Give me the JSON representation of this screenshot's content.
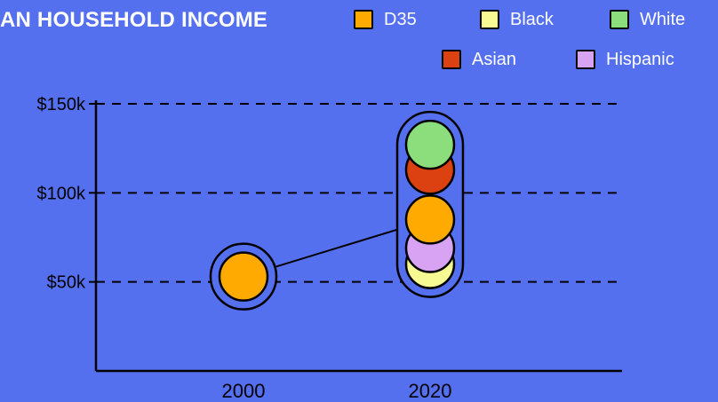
{
  "chart_data": {
    "type": "scatter",
    "title": "AN HOUSEHOLD INCOME",
    "categories": [
      "2000",
      "2020"
    ],
    "y_ticks": [
      "$50k",
      "$100k",
      "$150k"
    ],
    "ylim": [
      0,
      150
    ],
    "grid": "dashed horizontal",
    "legend_position": "top-right",
    "legend": [
      {
        "label": "D35",
        "color": "#ffaa00"
      },
      {
        "label": "Black",
        "color": "#f7f993"
      },
      {
        "label": "White",
        "color": "#8cdd7b"
      },
      {
        "label": "Asian",
        "color": "#dc4112"
      },
      {
        "label": "Hispanic",
        "color": "#d8a3f2"
      }
    ],
    "series": [
      {
        "name": "D35",
        "color": "#ffaa00",
        "points": [
          {
            "x": "2000",
            "y": 53
          },
          {
            "x": "2020",
            "y": 85
          }
        ]
      },
      {
        "name": "Black",
        "color": "#f7f993",
        "points": [
          {
            "x": "2020",
            "y": 60
          }
        ]
      },
      {
        "name": "Hispanic",
        "color": "#d8a3f2",
        "points": [
          {
            "x": "2020",
            "y": 69
          }
        ]
      },
      {
        "name": "Asian",
        "color": "#dc4112",
        "points": [
          {
            "x": "2020",
            "y": 113
          }
        ]
      },
      {
        "name": "White",
        "color": "#8cdd7b",
        "points": [
          {
            "x": "2020",
            "y": 127
          }
        ]
      }
    ]
  }
}
